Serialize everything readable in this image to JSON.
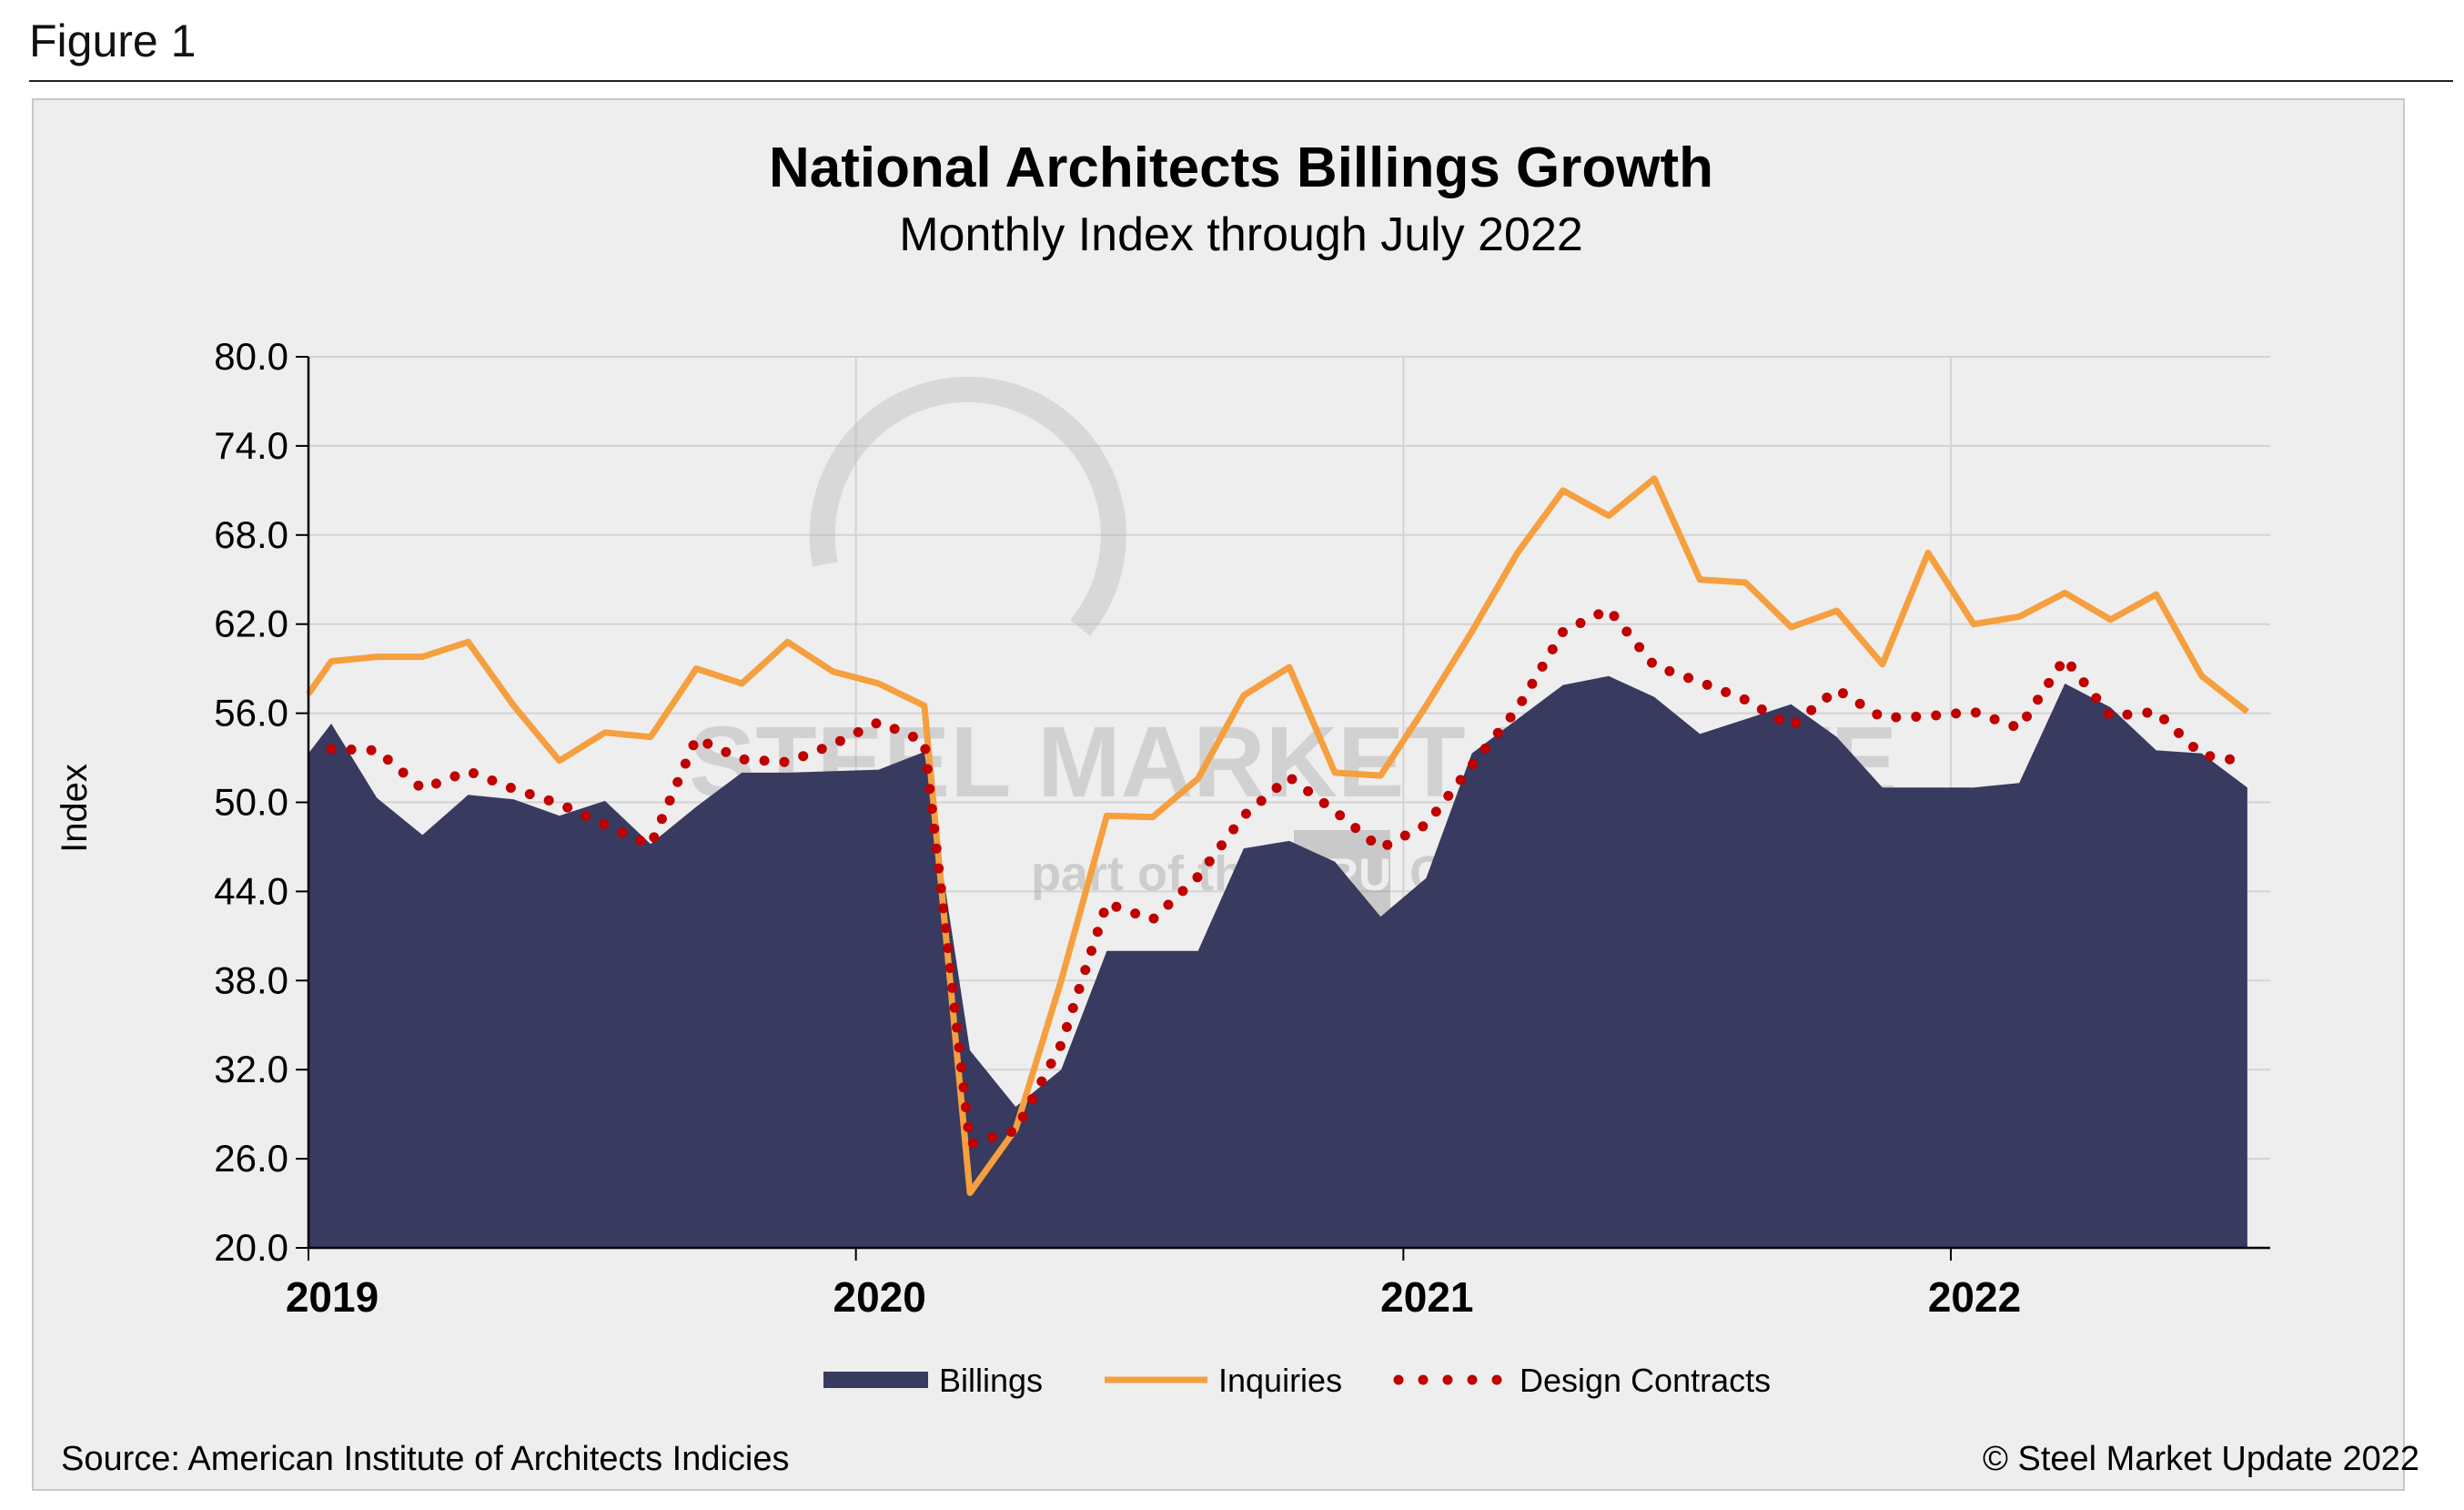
{
  "figure_label": "Figure 1",
  "source_text": "Source: American Institute of Architects Indicies",
  "copyright_text": "© Steel Market Update 2022",
  "watermark": {
    "brand": "STEEL MARKET UPDATE",
    "tagline_left": "part of the",
    "logo_text": "CRU",
    "tagline_right": "Group"
  },
  "colors": {
    "billings": "#383a5f",
    "inquiries": "#f59f3e",
    "design_contracts": "#c00000",
    "grid": "#d3d3d3",
    "background": "#eeeeee"
  },
  "chart_data": {
    "type": "area",
    "title": "National Architects Billings Growth",
    "subtitle": "Monthly Index through July 2022",
    "ylabel": "Index",
    "xlabel": "",
    "ylim": [
      20.0,
      80.0
    ],
    "yticks": [
      "20.0",
      "26.0",
      "32.0",
      "38.0",
      "44.0",
      "50.0",
      "56.0",
      "62.0",
      "68.0",
      "74.0",
      "80.0"
    ],
    "xtick_labels": [
      "2019",
      "2020",
      "2021",
      "2022"
    ],
    "grid": true,
    "legend_position": "bottom",
    "x": [
      "2019-01",
      "2019-02",
      "2019-03",
      "2019-04",
      "2019-05",
      "2019-06",
      "2019-07",
      "2019-08",
      "2019-09",
      "2019-10",
      "2019-11",
      "2019-12",
      "2020-01",
      "2020-02",
      "2020-03",
      "2020-04",
      "2020-05",
      "2020-06",
      "2020-07",
      "2020-08",
      "2020-09",
      "2020-10",
      "2020-11",
      "2020-12",
      "2021-01",
      "2021-02",
      "2021-03",
      "2021-04",
      "2021-05",
      "2021-06",
      "2021-07",
      "2021-08",
      "2021-09",
      "2021-10",
      "2021-11",
      "2021-12",
      "2022-01",
      "2022-02",
      "2022-03",
      "2022-04",
      "2022-05",
      "2022-06",
      "2022-07"
    ],
    "series": [
      {
        "name": "Billings",
        "style": "area",
        "values": [
          55.3,
          50.3,
          47.8,
          50.5,
          50.2,
          49.1,
          50.1,
          47.2,
          49.7,
          52.0,
          52.0,
          52.1,
          52.2,
          53.4,
          33.3,
          29.5,
          32.0,
          40.0,
          40.0,
          40.0,
          46.9,
          47.4,
          46.0,
          42.3,
          44.9,
          53.3,
          55.6,
          57.9,
          58.5,
          57.1,
          54.6,
          55.6,
          56.6,
          54.4,
          51.0,
          51.0,
          51.0,
          51.3,
          58.0,
          56.4,
          53.5,
          53.3,
          51.0
        ]
      },
      {
        "name": "Inquiries",
        "style": "line",
        "values": [
          59.5,
          59.8,
          59.8,
          60.8,
          56.5,
          52.8,
          54.7,
          54.4,
          59.0,
          58.0,
          60.8,
          58.8,
          58.0,
          56.5,
          23.7,
          28.0,
          38.0,
          49.1,
          49.0,
          51.6,
          57.2,
          59.1,
          52.0,
          51.8,
          56.5,
          61.5,
          66.8,
          71.0,
          69.3,
          71.8,
          65.0,
          64.8,
          61.8,
          62.9,
          59.3,
          66.8,
          62.0,
          62.5,
          64.1,
          62.3,
          64.0,
          58.5,
          56.1
        ]
      },
      {
        "name": "Design Contracts",
        "style": "dotted",
        "values": [
          53.6,
          53.5,
          50.9,
          52.1,
          50.9,
          49.9,
          48.5,
          47.1,
          54.3,
          52.9,
          52.7,
          53.9,
          55.4,
          54.1,
          27.0,
          27.9,
          33.7,
          43.2,
          42.1,
          45.0,
          49.1,
          51.7,
          49.4,
          46.9,
          48.5,
          52.5,
          56.3,
          61.5,
          63.0,
          59.2,
          58.1,
          56.9,
          55.1,
          57.6,
          55.7,
          55.8,
          56.1,
          55.0,
          59.7,
          55.8,
          56.1,
          53.2,
          52.7
        ]
      }
    ]
  }
}
